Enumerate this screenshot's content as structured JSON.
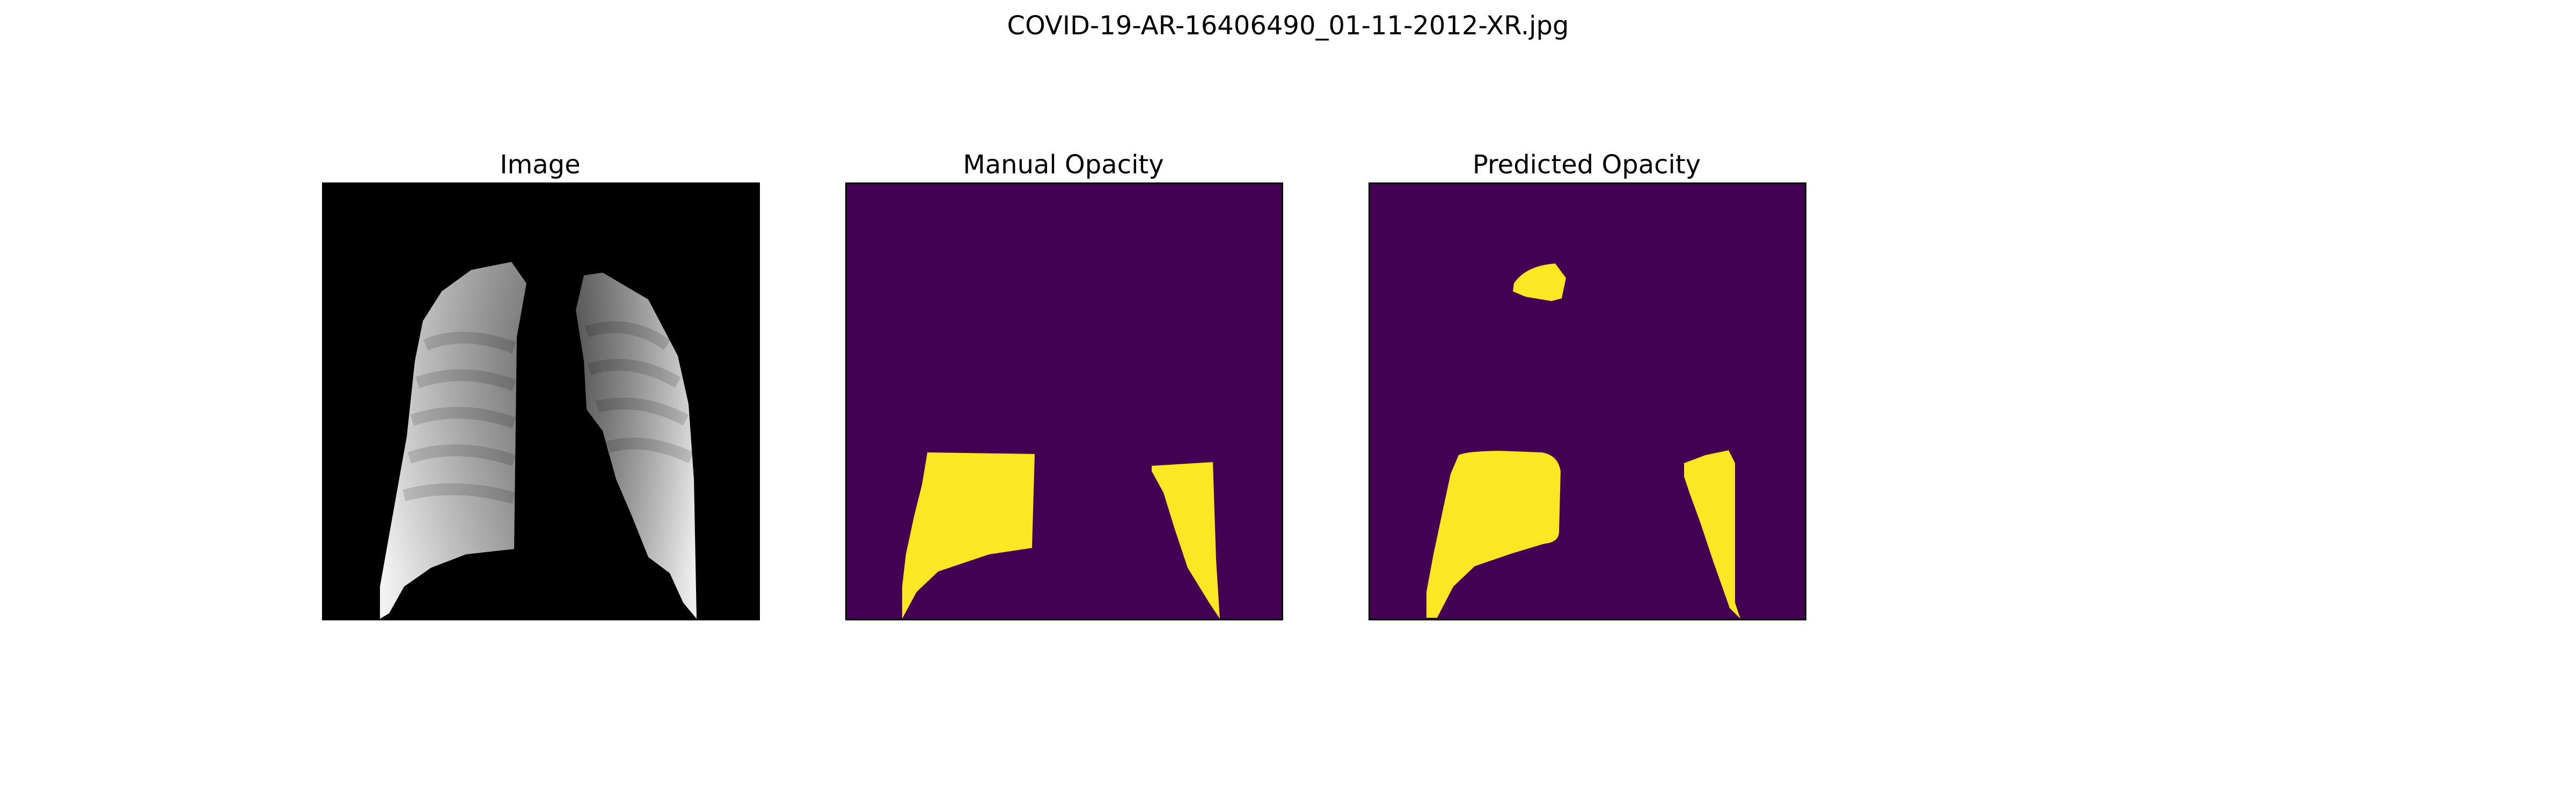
{
  "figure": {
    "title": "COVID-19-AR-16406490_01-11-2012-XR.jpg"
  },
  "panels": [
    {
      "title": "Image",
      "content": "grayscale chest x-ray with lung fields segmented"
    },
    {
      "title": "Manual Opacity",
      "content": "binary mask"
    },
    {
      "title": "Predicted Opacity",
      "content": "binary mask"
    }
  ],
  "colors": {
    "mask_background": "#440154",
    "mask_foreground": "#fde725",
    "image_background": "#000000"
  }
}
